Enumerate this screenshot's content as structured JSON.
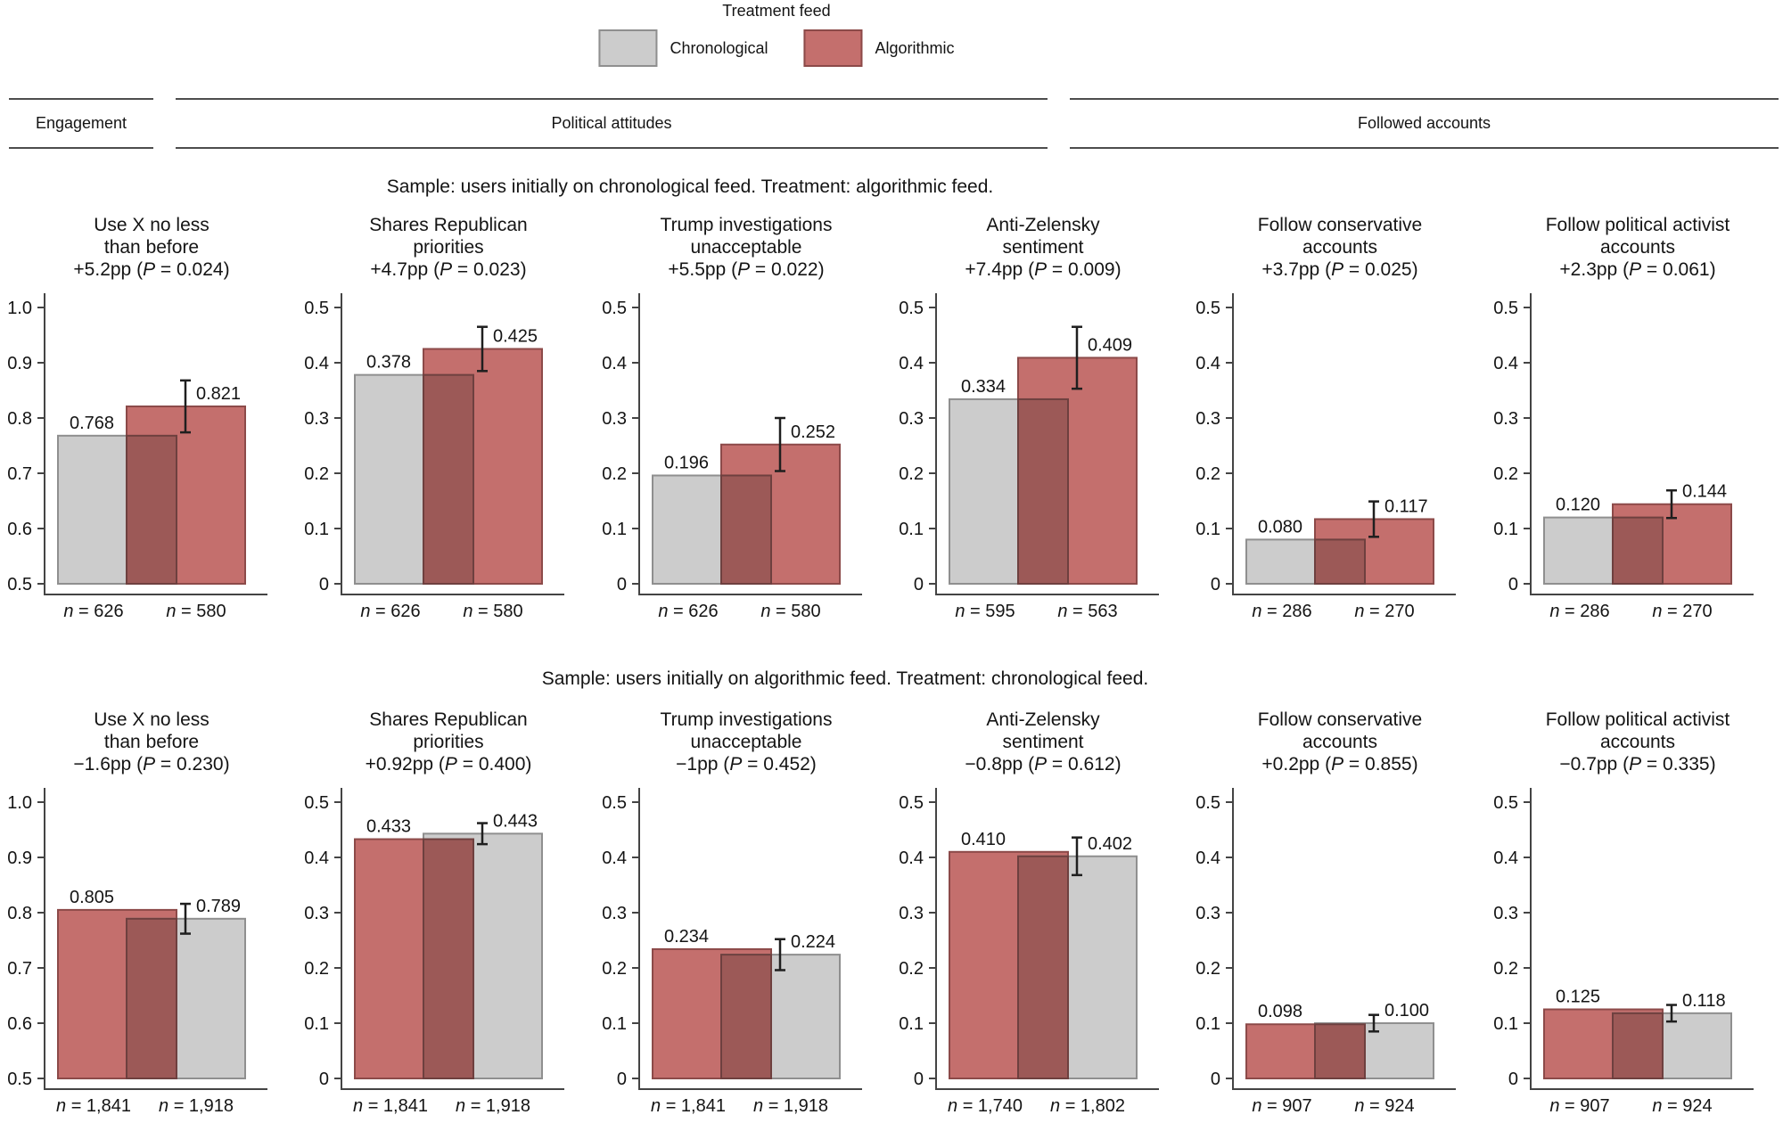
{
  "legend": {
    "title": "Treatment feed",
    "items": [
      {
        "series": "chronological",
        "label": "Chronological",
        "fill": "#cccccc",
        "stroke": "#8f8f8f"
      },
      {
        "series": "algorithmic",
        "label": "Algorithmic",
        "fill": "#c46f6d",
        "stroke": "#8c4a49"
      }
    ]
  },
  "sections": [
    {
      "label": "Engagement"
    },
    {
      "label": "Political attitudes"
    },
    {
      "label": "Followed accounts"
    }
  ],
  "colors": {
    "chronological": {
      "fill": "#cccccc",
      "stroke": "#8f8f8f"
    },
    "algorithmic": {
      "fill": "#c46f6d",
      "stroke": "#8c4a49"
    },
    "overlap": {
      "fill": "#9c5957",
      "stroke": "#6e403f"
    },
    "axis": "#444444",
    "error_bar": "#1f1f1f"
  },
  "chart_data": {
    "type": "bar",
    "rows": [
      {
        "caption": "Sample: users initially on chronological feed. Treatment: algorithmic feed.",
        "charts": [
          {
            "title_lines": [
              "Use X no less",
              "than before"
            ],
            "effect": "+5.2pp (P = 0.024)",
            "ymin": 0.5,
            "ymax": 1.0,
            "yticks": [
              "0.5",
              "0.6",
              "0.7",
              "0.8",
              "0.9",
              "1.0"
            ],
            "bars": [
              {
                "series": "chronological",
                "value": 0.768,
                "label": "0.768",
                "n": "n = 626"
              },
              {
                "series": "algorithmic",
                "value": 0.821,
                "label": "0.821",
                "n": "n = 580",
                "ci": 0.047
              }
            ]
          },
          {
            "title_lines": [
              "Shares Republican",
              "priorities"
            ],
            "effect": "+4.7pp (P = 0.023)",
            "ymin": 0,
            "ymax": 0.5,
            "yticks": [
              "0",
              "0.1",
              "0.2",
              "0.3",
              "0.4",
              "0.5"
            ],
            "bars": [
              {
                "series": "chronological",
                "value": 0.378,
                "label": "0.378",
                "n": "n = 626"
              },
              {
                "series": "algorithmic",
                "value": 0.425,
                "label": "0.425",
                "n": "n = 580",
                "ci": 0.04
              }
            ]
          },
          {
            "title_lines": [
              "Trump investigations",
              "unacceptable"
            ],
            "effect": "+5.5pp (P = 0.022)",
            "ymin": 0,
            "ymax": 0.5,
            "yticks": [
              "0",
              "0.1",
              "0.2",
              "0.3",
              "0.4",
              "0.5"
            ],
            "bars": [
              {
                "series": "chronological",
                "value": 0.196,
                "label": "0.196",
                "n": "n = 626"
              },
              {
                "series": "algorithmic",
                "value": 0.252,
                "label": "0.252",
                "n": "n = 580",
                "ci": 0.048
              }
            ]
          },
          {
            "title_lines": [
              "Anti-Zelensky",
              "sentiment"
            ],
            "effect": "+7.4pp (P = 0.009)",
            "ymin": 0,
            "ymax": 0.5,
            "yticks": [
              "0",
              "0.1",
              "0.2",
              "0.3",
              "0.4",
              "0.5"
            ],
            "bars": [
              {
                "series": "chronological",
                "value": 0.334,
                "label": "0.334",
                "n": "n = 595"
              },
              {
                "series": "algorithmic",
                "value": 0.409,
                "label": "0.409",
                "n": "n = 563",
                "ci": 0.056
              }
            ]
          },
          {
            "title_lines": [
              "Follow conservative",
              "accounts"
            ],
            "effect": "+3.7pp (P = 0.025)",
            "ymin": 0,
            "ymax": 0.5,
            "yticks": [
              "0",
              "0.1",
              "0.2",
              "0.3",
              "0.4",
              "0.5"
            ],
            "bars": [
              {
                "series": "chronological",
                "value": 0.08,
                "label": "0.080",
                "n": "n = 286"
              },
              {
                "series": "algorithmic",
                "value": 0.117,
                "label": "0.117",
                "n": "n = 270",
                "ci": 0.032
              }
            ]
          },
          {
            "title_lines": [
              "Follow political activist",
              "accounts"
            ],
            "effect": "+2.3pp (P = 0.061)",
            "ymin": 0,
            "ymax": 0.5,
            "yticks": [
              "0",
              "0.1",
              "0.2",
              "0.3",
              "0.4",
              "0.5"
            ],
            "bars": [
              {
                "series": "chronological",
                "value": 0.12,
                "label": "0.120",
                "n": "n = 286"
              },
              {
                "series": "algorithmic",
                "value": 0.144,
                "label": "0.144",
                "n": "n = 270",
                "ci": 0.025
              }
            ]
          }
        ]
      },
      {
        "caption": "Sample: users initially on algorithmic feed. Treatment: chronological feed.",
        "charts": [
          {
            "title_lines": [
              "Use X no less",
              "than before"
            ],
            "effect": "−1.6pp (P = 0.230)",
            "ymin": 0.5,
            "ymax": 1.0,
            "yticks": [
              "0.5",
              "0.6",
              "0.7",
              "0.8",
              "0.9",
              "1.0"
            ],
            "bars": [
              {
                "series": "algorithmic",
                "value": 0.805,
                "label": "0.805",
                "n": "n = 1,841"
              },
              {
                "series": "chronological",
                "value": 0.789,
                "label": "0.789",
                "n": "n = 1,918",
                "ci": 0.027
              }
            ]
          },
          {
            "title_lines": [
              "Shares Republican",
              "priorities"
            ],
            "effect": "+0.92pp (P = 0.400)",
            "ymin": 0,
            "ymax": 0.5,
            "yticks": [
              "0",
              "0.1",
              "0.2",
              "0.3",
              "0.4",
              "0.5"
            ],
            "bars": [
              {
                "series": "algorithmic",
                "value": 0.433,
                "label": "0.433",
                "n": "n = 1,841"
              },
              {
                "series": "chronological",
                "value": 0.443,
                "label": "0.443",
                "n": "n = 1,918",
                "ci": 0.019
              }
            ]
          },
          {
            "title_lines": [
              "Trump investigations",
              "unacceptable"
            ],
            "effect": "−1pp (P = 0.452)",
            "ymin": 0,
            "ymax": 0.5,
            "yticks": [
              "0",
              "0.1",
              "0.2",
              "0.3",
              "0.4",
              "0.5"
            ],
            "bars": [
              {
                "series": "algorithmic",
                "value": 0.234,
                "label": "0.234",
                "n": "n = 1,841"
              },
              {
                "series": "chronological",
                "value": 0.224,
                "label": "0.224",
                "n": "n = 1,918",
                "ci": 0.028
              }
            ]
          },
          {
            "title_lines": [
              "Anti-Zelensky",
              "sentiment"
            ],
            "effect": "−0.8pp (P = 0.612)",
            "ymin": 0,
            "ymax": 0.5,
            "yticks": [
              "0",
              "0.1",
              "0.2",
              "0.3",
              "0.4",
              "0.5"
            ],
            "bars": [
              {
                "series": "algorithmic",
                "value": 0.41,
                "label": "0.410",
                "n": "n = 1,740"
              },
              {
                "series": "chronological",
                "value": 0.402,
                "label": "0.402",
                "n": "n = 1,802",
                "ci": 0.034
              }
            ]
          },
          {
            "title_lines": [
              "Follow conservative",
              "accounts"
            ],
            "effect": "+0.2pp (P = 0.855)",
            "ymin": 0,
            "ymax": 0.5,
            "yticks": [
              "0",
              "0.1",
              "0.2",
              "0.3",
              "0.4",
              "0.5"
            ],
            "bars": [
              {
                "series": "algorithmic",
                "value": 0.098,
                "label": "0.098",
                "n": "n = 907"
              },
              {
                "series": "chronological",
                "value": 0.1,
                "label": "0.100",
                "n": "n = 924",
                "ci": 0.015
              }
            ]
          },
          {
            "title_lines": [
              "Follow political activist",
              "accounts"
            ],
            "effect": "−0.7pp (P = 0.335)",
            "ymin": 0,
            "ymax": 0.5,
            "yticks": [
              "0",
              "0.1",
              "0.2",
              "0.3",
              "0.4",
              "0.5"
            ],
            "bars": [
              {
                "series": "algorithmic",
                "value": 0.125,
                "label": "0.125",
                "n": "n = 907"
              },
              {
                "series": "chronological",
                "value": 0.118,
                "label": "0.118",
                "n": "n = 924",
                "ci": 0.015
              }
            ]
          }
        ]
      }
    ]
  }
}
